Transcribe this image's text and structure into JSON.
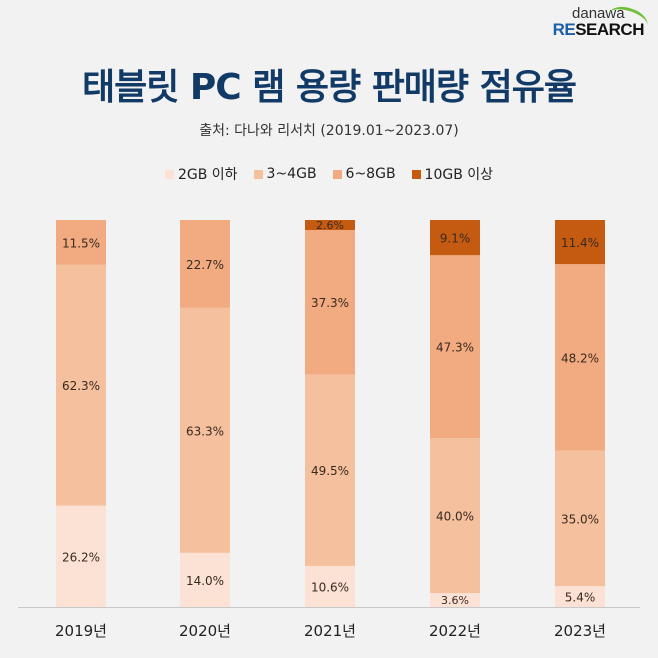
{
  "brand": {
    "top": "danawa",
    "bottom_accent": "RE",
    "bottom_rest": "SEARCH"
  },
  "title": "태블릿 PC 램 용량 판매량 점유율",
  "subtitle": "출처: 다나와 리서치 (2019.01~2023.07)",
  "chart_data": {
    "type": "bar",
    "stacked": true,
    "title": "태블릿 PC 램 용량 판매량 점유율",
    "subtitle": "출처: 다나와 리서치 (2019.01~2023.07)",
    "xlabel": "",
    "ylabel": "",
    "ylim": [
      0,
      100
    ],
    "grid": false,
    "legend_position": "top-center",
    "categories": [
      "2019년",
      "2020년",
      "2021년",
      "2022년",
      "2023년"
    ],
    "series": [
      {
        "name": "2GB 이하",
        "color": "#fbe2d4",
        "values": [
          26.2,
          14.0,
          10.6,
          3.6,
          5.4
        ]
      },
      {
        "name": "3~4GB",
        "color": "#f5c09d",
        "values": [
          62.3,
          63.3,
          49.5,
          40.0,
          35.0
        ]
      },
      {
        "name": "6~8GB",
        "color": "#f2ab80",
        "values": [
          11.5,
          22.7,
          37.3,
          47.3,
          48.2
        ]
      },
      {
        "name": "10GB 이상",
        "color": "#c55a11",
        "values": [
          0,
          0,
          2.6,
          9.1,
          11.4
        ]
      }
    ]
  }
}
